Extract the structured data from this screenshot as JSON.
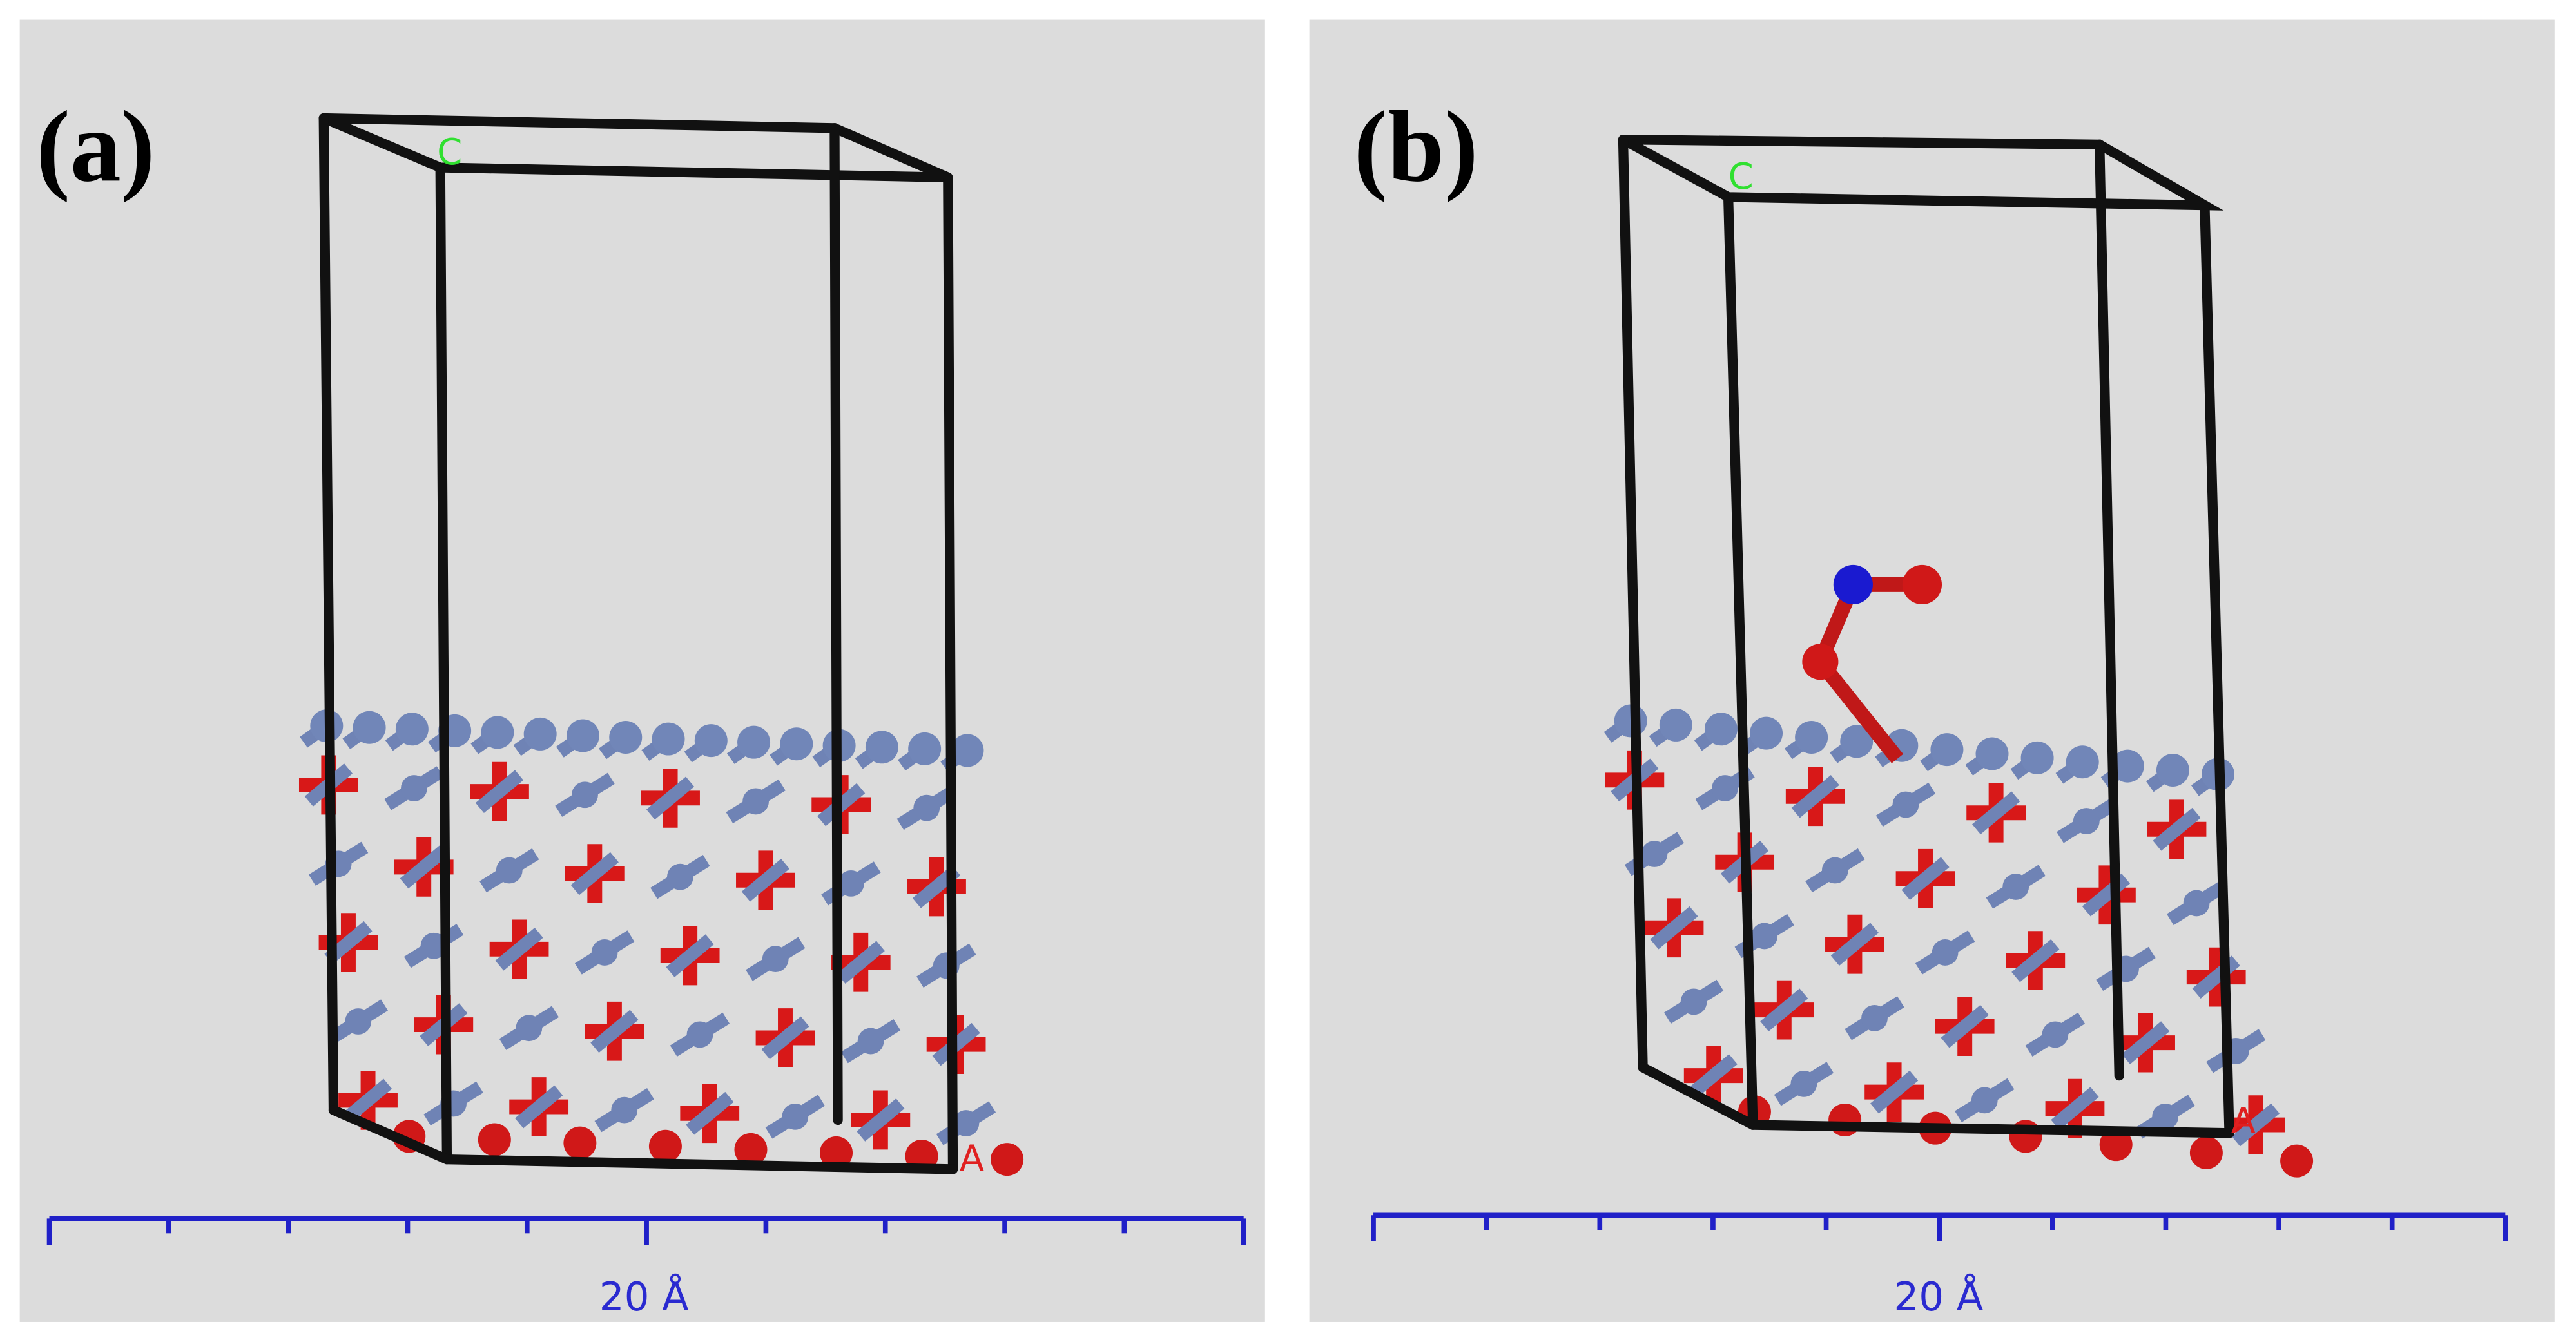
{
  "panels": [
    {
      "label": "(a)",
      "axis_c": "C",
      "axis_a": "A",
      "scale_label": "20 Å"
    },
    {
      "label": "(b)",
      "axis_c": "C",
      "axis_a": "A",
      "scale_label": "20 Å"
    }
  ]
}
